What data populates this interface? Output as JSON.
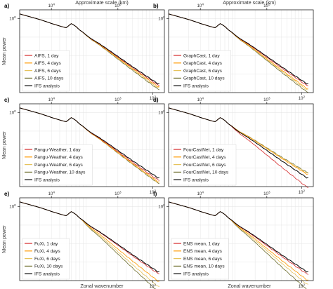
{
  "figure": {
    "top_axis_label": "Approximate scale (km)",
    "bottom_axis_label": "Zonal wavenumber",
    "y_axis_label": "Mean power"
  },
  "chart_data": [
    {
      "panel": "a)",
      "type": "line",
      "xscale": "log",
      "yscale": "log",
      "xlim": [
        1,
        150
      ],
      "ylim": [
        0.0001,
        3
      ],
      "x_ticks": [
        "10^2"
      ],
      "y_ticks": [
        "10^0"
      ],
      "top_ticks": [
        "10^4",
        "10^3"
      ],
      "grid": true,
      "legend_position": "lower-left",
      "ifs": {
        "x": [
          1,
          2,
          3,
          4,
          5,
          6,
          7,
          8,
          9,
          10,
          12,
          15,
          20,
          30,
          50,
          80,
          120
        ],
        "y": [
          1.8,
          0.9,
          0.55,
          0.4,
          0.32,
          0.55,
          0.38,
          0.24,
          0.18,
          0.13,
          0.08,
          0.05,
          0.025,
          0.009,
          0.0025,
          0.0008,
          0.0003
        ]
      },
      "series": [
        {
          "name": "AIFS, 1 day",
          "color": "#d62728",
          "final_ratio": 0.85
        },
        {
          "name": "AIFS, 4 days",
          "color": "#ff9900",
          "final_ratio": 0.7
        },
        {
          "name": "AIFS, 6 days",
          "color": "#e6c35c",
          "final_ratio": 0.6
        },
        {
          "name": "AIFS, 10 days",
          "color": "#6b6b2a",
          "final_ratio": 0.5
        },
        {
          "name": "IFS analysis",
          "color": "#000000",
          "final_ratio": 1.0
        }
      ]
    },
    {
      "panel": "b)",
      "type": "line",
      "xscale": "log",
      "yscale": "log",
      "xlim": [
        1,
        150
      ],
      "ylim": [
        0.0001,
        3
      ],
      "x_ticks": [
        "10^2"
      ],
      "y_ticks": [
        "10^0"
      ],
      "top_ticks": [
        "10^4",
        "10^3"
      ],
      "grid": true,
      "legend_position": "lower-left",
      "ifs": {
        "x": [
          1,
          2,
          3,
          4,
          5,
          6,
          7,
          8,
          9,
          10,
          12,
          15,
          20,
          30,
          50,
          80,
          120
        ],
        "y": [
          1.8,
          0.9,
          0.55,
          0.4,
          0.32,
          0.55,
          0.38,
          0.24,
          0.18,
          0.13,
          0.08,
          0.05,
          0.025,
          0.009,
          0.0025,
          0.0008,
          0.0003
        ]
      },
      "series": [
        {
          "name": "GraphCast, 1 day",
          "color": "#d62728",
          "final_ratio": 0.8
        },
        {
          "name": "GraphCast, 4 days",
          "color": "#ff9900",
          "final_ratio": 0.55
        },
        {
          "name": "GraphCast, 6 days",
          "color": "#e6c35c",
          "final_ratio": 0.45
        },
        {
          "name": "GraphCast, 10 days",
          "color": "#6b6b2a",
          "final_ratio": 0.35
        },
        {
          "name": "IFS analysis",
          "color": "#000000",
          "final_ratio": 1.0
        }
      ]
    },
    {
      "panel": "c)",
      "type": "line",
      "xscale": "log",
      "yscale": "log",
      "xlim": [
        1,
        150
      ],
      "ylim": [
        0.0001,
        3
      ],
      "x_ticks": [
        "10^2"
      ],
      "y_ticks": [
        "10^0"
      ],
      "top_ticks": [
        "10^4",
        "10^3"
      ],
      "grid": true,
      "legend_position": "lower-left",
      "ifs": {
        "x": [
          1,
          2,
          3,
          4,
          5,
          6,
          7,
          8,
          9,
          10,
          12,
          15,
          20,
          30,
          50,
          80,
          120
        ],
        "y": [
          1.8,
          0.9,
          0.55,
          0.4,
          0.32,
          0.55,
          0.38,
          0.24,
          0.18,
          0.13,
          0.08,
          0.05,
          0.025,
          0.009,
          0.0025,
          0.0008,
          0.0003
        ]
      },
      "series": [
        {
          "name": "Pangu-Weather, 1 day",
          "color": "#d62728",
          "final_ratio": 0.75
        },
        {
          "name": "Pangu-Weather, 4 days",
          "color": "#ff9900",
          "final_ratio": 0.6
        },
        {
          "name": "Pangu-Weather, 6 days",
          "color": "#e6c35c",
          "final_ratio": 0.55
        },
        {
          "name": "Pangu-Weather, 10 days",
          "color": "#6b6b2a",
          "final_ratio": 0.5
        },
        {
          "name": "IFS analysis",
          "color": "#000000",
          "final_ratio": 1.0
        }
      ]
    },
    {
      "panel": "d)",
      "type": "line",
      "xscale": "log",
      "yscale": "log",
      "xlim": [
        1,
        150
      ],
      "ylim": [
        0.0001,
        3
      ],
      "x_ticks": [
        "10^2"
      ],
      "y_ticks": [
        "10^0"
      ],
      "top_ticks": [
        "10^4",
        "10^3"
      ],
      "grid": true,
      "legend_position": "lower-left",
      "ifs": {
        "x": [
          1,
          2,
          3,
          4,
          5,
          6,
          7,
          8,
          9,
          10,
          12,
          15,
          20,
          30,
          50,
          80,
          120
        ],
        "y": [
          1.8,
          0.9,
          0.55,
          0.4,
          0.32,
          0.55,
          0.38,
          0.24,
          0.18,
          0.13,
          0.08,
          0.05,
          0.025,
          0.009,
          0.0025,
          0.0008,
          0.0003
        ]
      },
      "series": [
        {
          "name": "FourCastNet, 1 day",
          "color": "#d62728",
          "final_ratio": 0.3
        },
        {
          "name": "FourCastNet, 4 days",
          "color": "#ff9900",
          "final_ratio": 1.6
        },
        {
          "name": "FourCastNet, 6 days",
          "color": "#e6c35c",
          "final_ratio": 1.8
        },
        {
          "name": "FourCastNet, 10 days",
          "color": "#6b6b2a",
          "final_ratio": 2.0
        },
        {
          "name": "IFS analysis",
          "color": "#000000",
          "final_ratio": 1.0
        }
      ]
    },
    {
      "panel": "e)",
      "type": "line",
      "xscale": "log",
      "yscale": "log",
      "xlim": [
        1,
        150
      ],
      "ylim": [
        0.0001,
        3
      ],
      "x_ticks": [
        "10^2"
      ],
      "y_ticks": [
        "10^0"
      ],
      "top_ticks": [
        "10^4",
        "10^3"
      ],
      "grid": true,
      "legend_position": "lower-left",
      "ifs": {
        "x": [
          1,
          2,
          3,
          4,
          5,
          6,
          7,
          8,
          9,
          10,
          12,
          15,
          20,
          30,
          50,
          80,
          120
        ],
        "y": [
          1.8,
          0.9,
          0.55,
          0.4,
          0.32,
          0.55,
          0.38,
          0.24,
          0.18,
          0.13,
          0.08,
          0.05,
          0.025,
          0.009,
          0.0025,
          0.0008,
          0.0003
        ]
      },
      "series": [
        {
          "name": "FuXi, 1 day",
          "color": "#d62728",
          "final_ratio": 0.8
        },
        {
          "name": "FuXi, 4 days",
          "color": "#ff9900",
          "final_ratio": 0.3
        },
        {
          "name": "FuXi, 6 days",
          "color": "#e6c35c",
          "final_ratio": 0.15
        },
        {
          "name": "FuXi, 10 days",
          "color": "#6b6b2a",
          "final_ratio": 0.08
        },
        {
          "name": "IFS analysis",
          "color": "#000000",
          "final_ratio": 1.0
        }
      ]
    },
    {
      "panel": "f)",
      "type": "line",
      "xscale": "log",
      "yscale": "log",
      "xlim": [
        1,
        150
      ],
      "ylim": [
        0.0001,
        3
      ],
      "x_ticks": [
        "10^2"
      ],
      "y_ticks": [
        "10^0"
      ],
      "top_ticks": [
        "10^4",
        "10^3"
      ],
      "grid": true,
      "legend_position": "lower-left",
      "ifs": {
        "x": [
          1,
          2,
          3,
          4,
          5,
          6,
          7,
          8,
          9,
          10,
          12,
          15,
          20,
          30,
          50,
          80,
          120
        ],
        "y": [
          1.8,
          0.9,
          0.55,
          0.4,
          0.32,
          0.55,
          0.38,
          0.24,
          0.18,
          0.13,
          0.08,
          0.05,
          0.025,
          0.009,
          0.0025,
          0.0008,
          0.0003
        ]
      },
      "series": [
        {
          "name": "ENS mean, 1 day",
          "color": "#d62728",
          "final_ratio": 0.75
        },
        {
          "name": "ENS mean, 4 days",
          "color": "#ff9900",
          "final_ratio": 0.35
        },
        {
          "name": "ENS mean, 6 days",
          "color": "#e6c35c",
          "final_ratio": 0.2
        },
        {
          "name": "ENS mean, 10 days",
          "color": "#6b6b2a",
          "final_ratio": 0.1
        },
        {
          "name": "IFS analysis",
          "color": "#000000",
          "final_ratio": 1.0
        }
      ]
    }
  ]
}
